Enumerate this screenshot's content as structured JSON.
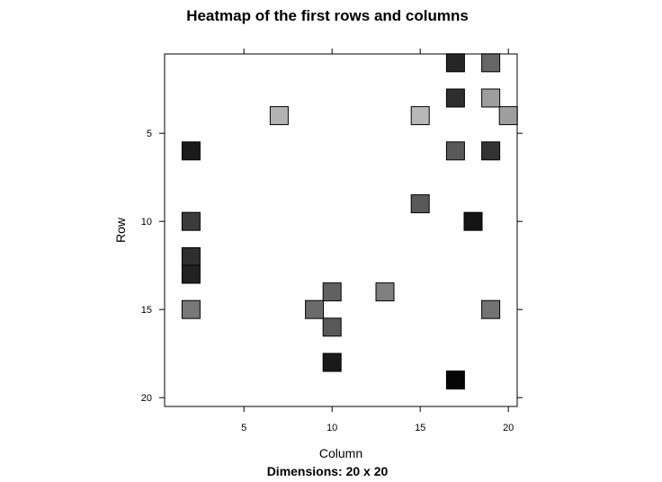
{
  "chart_data": {
    "type": "heatmap",
    "title": "Heatmap of the first rows and columns",
    "xlabel": "Column",
    "ylabel": "Row",
    "subtitle": "Dimensions: 20 x 20",
    "xlim": [
      0.5,
      20.5
    ],
    "ylim": [
      20.5,
      0.5
    ],
    "x_ticks": [
      5,
      10,
      15,
      20
    ],
    "y_ticks": [
      5,
      10,
      15,
      20
    ],
    "y_reversed": true,
    "grid": false,
    "cells": [
      {
        "col": 17,
        "row": 1,
        "value": 0.15
      },
      {
        "col": 19,
        "row": 1,
        "value": 0.4
      },
      {
        "col": 17,
        "row": 3,
        "value": 0.18
      },
      {
        "col": 19,
        "row": 3,
        "value": 0.62
      },
      {
        "col": 7,
        "row": 4,
        "value": 0.7
      },
      {
        "col": 15,
        "row": 4,
        "value": 0.72
      },
      {
        "col": 20,
        "row": 4,
        "value": 0.62
      },
      {
        "col": 2,
        "row": 6,
        "value": 0.1
      },
      {
        "col": 17,
        "row": 6,
        "value": 0.35
      },
      {
        "col": 19,
        "row": 6,
        "value": 0.2
      },
      {
        "col": 15,
        "row": 9,
        "value": 0.35
      },
      {
        "col": 2,
        "row": 10,
        "value": 0.23
      },
      {
        "col": 18,
        "row": 10,
        "value": 0.08
      },
      {
        "col": 2,
        "row": 12,
        "value": 0.18
      },
      {
        "col": 2,
        "row": 13,
        "value": 0.13
      },
      {
        "col": 10,
        "row": 14,
        "value": 0.38
      },
      {
        "col": 13,
        "row": 14,
        "value": 0.5
      },
      {
        "col": 2,
        "row": 15,
        "value": 0.47
      },
      {
        "col": 9,
        "row": 15,
        "value": 0.42
      },
      {
        "col": 19,
        "row": 15,
        "value": 0.45
      },
      {
        "col": 10,
        "row": 16,
        "value": 0.35
      },
      {
        "col": 10,
        "row": 18,
        "value": 0.1
      },
      {
        "col": 17,
        "row": 19,
        "value": 0.02
      }
    ]
  }
}
